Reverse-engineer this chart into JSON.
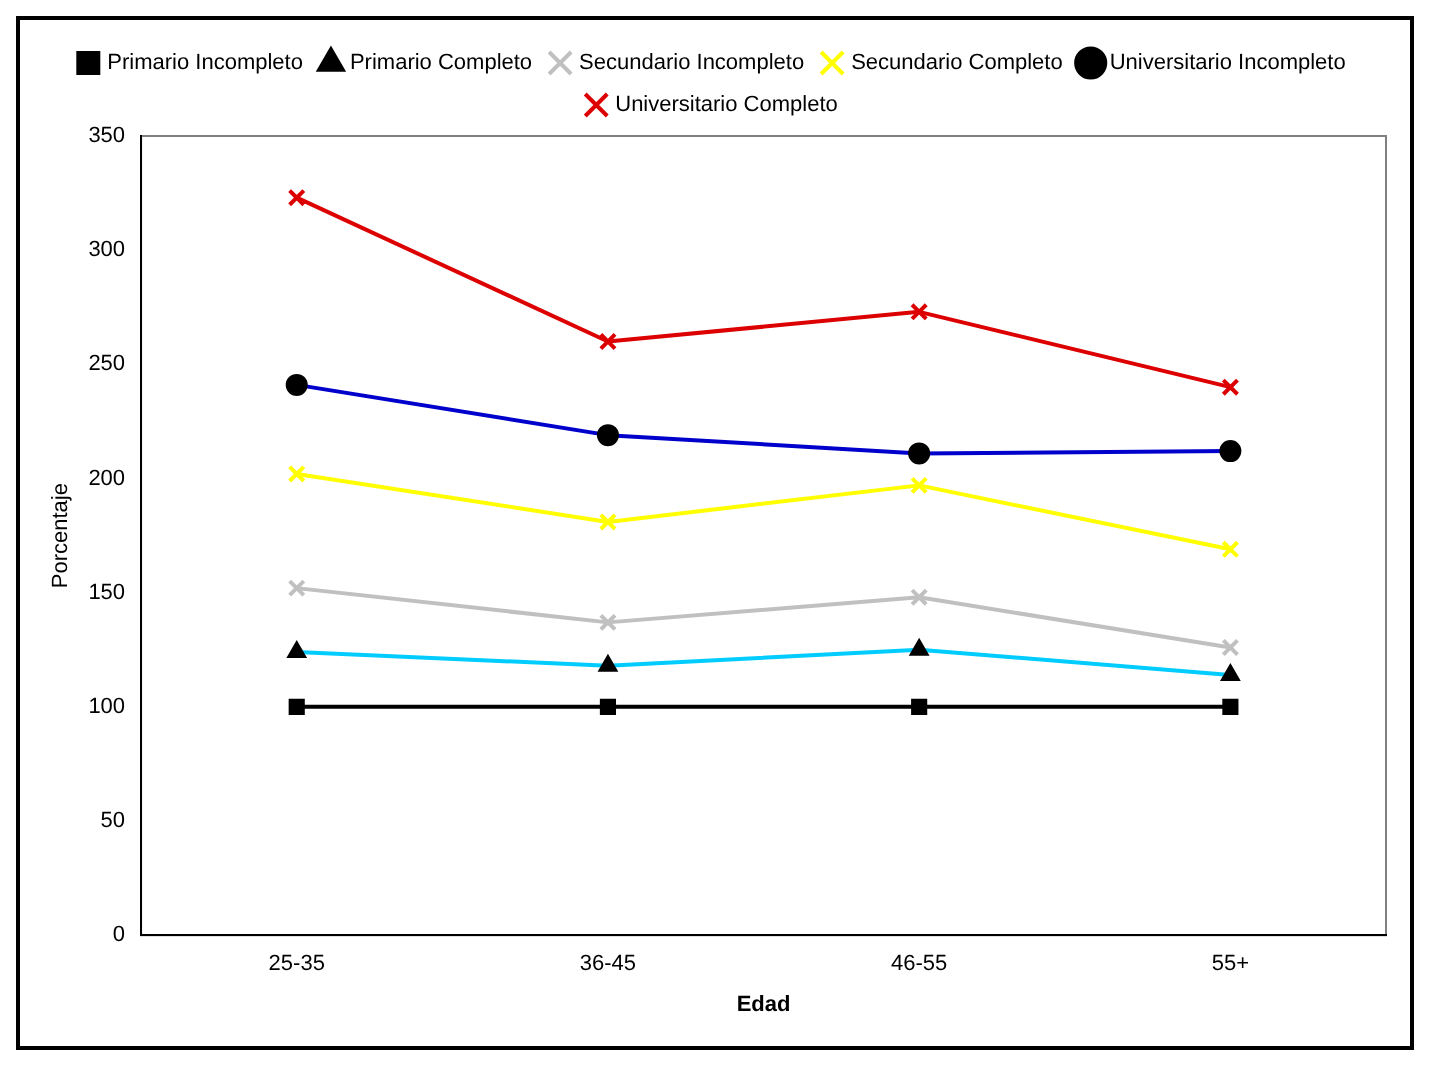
{
  "chart_data": {
    "type": "line",
    "xlabel": "Edad",
    "ylabel": "Porcentaje",
    "categories": [
      "25-35",
      "36-45",
      "46-55",
      "55+"
    ],
    "ylim": [
      0,
      350
    ],
    "yticks": [
      0,
      50,
      100,
      150,
      200,
      250,
      300,
      350
    ],
    "grid": false,
    "legend": "top",
    "series": [
      {
        "name": "Primario Incompleto",
        "color": "#000000",
        "marker": "square",
        "values": [
          100,
          100,
          100,
          100
        ]
      },
      {
        "name": "Primario Completo",
        "color": "#00ccff",
        "marker": "triangle",
        "values": [
          124,
          118,
          125,
          114
        ]
      },
      {
        "name": "Secundario Incompleto",
        "color": "#c0c0c0",
        "marker": "cross",
        "values": [
          152,
          137,
          148,
          126
        ]
      },
      {
        "name": "Secundario Completo",
        "color": "#ffff00",
        "marker": "cross",
        "values": [
          202,
          181,
          197,
          169
        ]
      },
      {
        "name": "Universitario Incompleto",
        "color": "#0000cc",
        "marker": "circle",
        "values": [
          241,
          219,
          211,
          212
        ]
      },
      {
        "name": "Universitario Completo",
        "color": "#dd0000",
        "marker": "cross",
        "values": [
          323,
          260,
          273,
          240
        ]
      }
    ]
  }
}
